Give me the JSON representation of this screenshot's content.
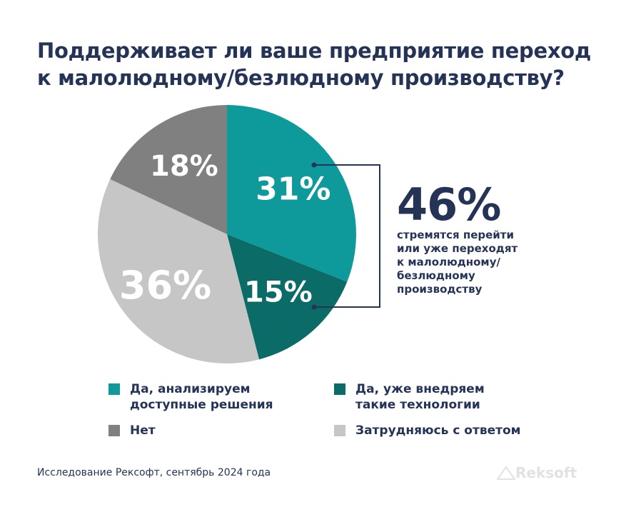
{
  "title_lines": [
    "Поддерживает ли ваше предприятие переход",
    "к малолюдному/безлюдному производству?"
  ],
  "chart_data": {
    "type": "pie",
    "title": "Поддерживает ли ваше предприятие переход к малолюдному/безлюдному производству?",
    "slices": [
      {
        "label": "Да, анализируем доступные решения",
        "value": 31,
        "display": "31%",
        "color": "#0e9a9a"
      },
      {
        "label": "Да, уже внедряем такие технологии",
        "value": 15,
        "display": "15%",
        "color": "#0b6b66"
      },
      {
        "label": "Затрудняюсь с ответом",
        "value": 36,
        "display": "36%",
        "color": "#c6c6c6"
      },
      {
        "label": "Нет",
        "value": 18,
        "display": "18%",
        "color": "#808080"
      }
    ],
    "annotation": {
      "value": "46%",
      "text_lines": [
        "стремятся перейти",
        "или уже переходят",
        "к малолюдному/",
        "безлюдному",
        "производству"
      ]
    },
    "legend_placement": "bottom"
  },
  "legend": [
    {
      "lines": [
        "Да, анализируем",
        "доступные решения"
      ],
      "color": "#0e9a9a"
    },
    {
      "lines": [
        "Да, уже внедряем",
        "такие технологии"
      ],
      "color": "#0b6b66"
    },
    {
      "lines": [
        "Нет"
      ],
      "color": "#808080"
    },
    {
      "lines": [
        "Затрудняюсь с ответом"
      ],
      "color": "#c6c6c6"
    }
  ],
  "source": "Исследование Рексофт, сентябрь 2024 года",
  "logo": "Reksoft",
  "accent_color": "#253456"
}
